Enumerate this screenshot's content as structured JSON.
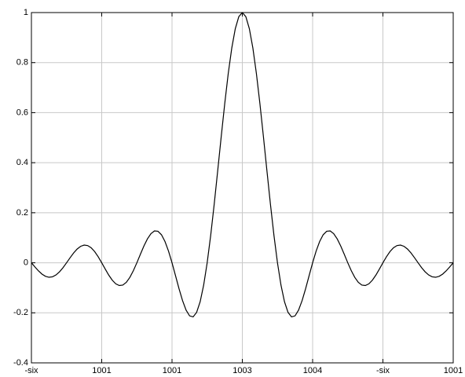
{
  "chart_data": {
    "type": "line",
    "x": [
      -3,
      -2.95,
      -2.9,
      -2.85,
      -2.8,
      -2.75,
      -2.7,
      -2.65,
      -2.6,
      -2.55,
      -2.5,
      -2.45,
      -2.4,
      -2.35,
      -2.3,
      -2.25,
      -2.2,
      -2.15,
      -2.1,
      -2.05,
      -2,
      -1.95,
      -1.9,
      -1.85,
      -1.8,
      -1.75,
      -1.7,
      -1.65,
      -1.6,
      -1.55,
      -1.5,
      -1.45,
      -1.4,
      -1.35,
      -1.3,
      -1.25,
      -1.2,
      -1.15,
      -1.1,
      -1.05,
      -1,
      -0.95,
      -0.9,
      -0.85,
      -0.8,
      -0.75,
      -0.7,
      -0.65,
      -0.6,
      -0.55,
      -0.5,
      -0.45,
      -0.4,
      -0.35,
      -0.3,
      -0.25,
      -0.2,
      -0.15,
      -0.1,
      -0.05,
      0,
      0.05,
      0.1,
      0.15,
      0.2,
      0.25,
      0.3,
      0.35,
      0.4,
      0.45,
      0.5,
      0.55,
      0.6,
      0.65,
      0.7,
      0.75,
      0.8,
      0.85,
      0.9,
      0.95,
      1,
      1.05,
      1.1,
      1.15,
      1.2,
      1.25,
      1.3,
      1.35,
      1.4,
      1.45,
      1.5,
      1.55,
      1.6,
      1.65,
      1.7,
      1.75,
      1.8,
      1.85,
      1.9,
      1.95,
      2,
      2.05,
      2.1,
      2.15,
      2.2,
      2.25,
      2.3,
      2.35,
      2.4,
      2.45,
      2.5,
      2.55,
      2.6,
      2.65,
      2.7,
      2.75,
      2.8,
      2.85,
      2.9,
      2.95,
      3
    ],
    "values": [
      0,
      -0.0167,
      -0.0323,
      -0.0452,
      -0.0541,
      -0.0579,
      -0.0561,
      -0.0486,
      -0.036,
      -0.0193,
      0,
      0.0201,
      0.039,
      0.0548,
      0.0658,
      0.0707,
      0.0688,
      0.0599,
      0.0445,
      0.024,
      0,
      -0.0252,
      -0.0492,
      -0.0696,
      -0.0841,
      -0.0909,
      -0.089,
      -0.078,
      -0.0585,
      -0.0317,
      0,
      0.0339,
      0.0668,
      0.0954,
      0.1164,
      0.1273,
      0.1261,
      0.112,
      0.085,
      0.0468,
      0,
      -0.0518,
      -0.1039,
      -0.1515,
      -0.1892,
      -0.2122,
      -0.2162,
      -0.1981,
      -0.1559,
      -0.0894,
      0,
      0.1093,
      0.2339,
      0.3679,
      0.5046,
      0.6366,
      0.7568,
      0.8584,
      0.9355,
      0.9836,
      1,
      0.9836,
      0.9355,
      0.8584,
      0.7568,
      0.6366,
      0.5046,
      0.3679,
      0.2339,
      0.1093,
      0,
      -0.0894,
      -0.1559,
      -0.1981,
      -0.2162,
      -0.2122,
      -0.1892,
      -0.1515,
      -0.1039,
      -0.0518,
      0,
      0.0468,
      0.085,
      0.112,
      0.1261,
      0.1273,
      0.1164,
      0.0954,
      0.0668,
      0.0339,
      0,
      -0.0317,
      -0.0585,
      -0.078,
      -0.089,
      -0.0909,
      -0.0841,
      -0.0696,
      -0.0492,
      -0.0252,
      0,
      0.024,
      0.0445,
      0.0599,
      0.0688,
      0.0707,
      0.0658,
      0.0548,
      0.039,
      0.0201,
      0,
      -0.0193,
      -0.036,
      -0.0486,
      -0.0561,
      -0.0579,
      -0.0541,
      -0.0452,
      -0.0323,
      -0.0167,
      0
    ],
    "color": "#000000",
    "xlim": [
      -3,
      3
    ],
    "xticks": [
      {
        "value": -3,
        "label": "-six"
      },
      {
        "value": -2,
        "label": "1001"
      },
      {
        "value": -1,
        "label": "1001"
      },
      {
        "value": 0,
        "label": "1003"
      },
      {
        "value": 1,
        "label": "1004"
      },
      {
        "value": 2,
        "label": "-six"
      },
      {
        "value": 3,
        "label": "1001"
      }
    ],
    "ylim": [
      -0.4,
      1
    ],
    "yticks": [
      -0.4,
      -0.2,
      0,
      0.2,
      0.4,
      0.6,
      0.8,
      1
    ],
    "grid": true
  }
}
